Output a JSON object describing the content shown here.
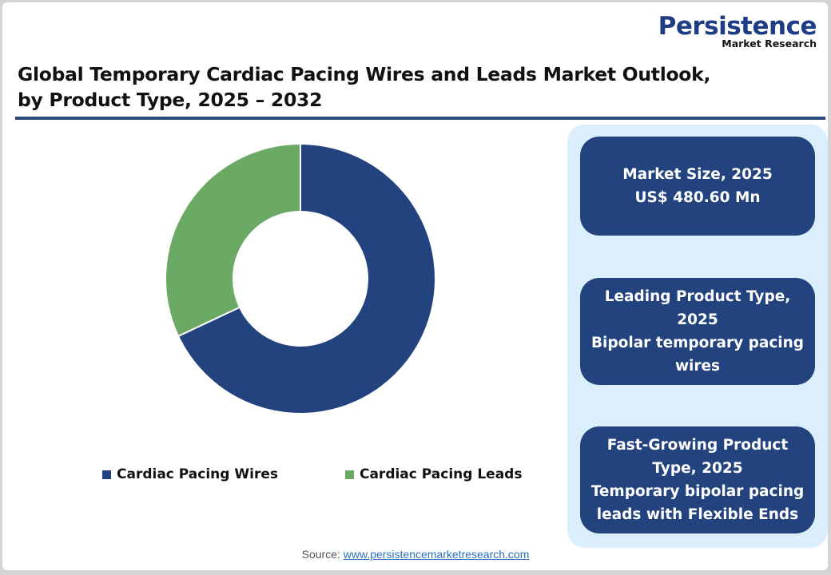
{
  "brand": {
    "name": "Persistence",
    "subtitle": "Market Research",
    "color": "#1f3d84"
  },
  "header": {
    "title_line1": "Global Temporary Cardiac Pacing Wires and Leads Market Outlook,",
    "title_line2": "by Product Type, 2025 – 2032"
  },
  "chart_data": {
    "type": "pie",
    "subtype": "donut",
    "title": "Global Temporary Cardiac Pacing Wires and Leads Market Outlook, by Product Type, 2025 – 2032",
    "categories": [
      "Cardiac Pacing Wires",
      "Cardiac Pacing Leads"
    ],
    "values": [
      68,
      32
    ],
    "unit": "%",
    "colors": [
      "#23437f",
      "#6aaa64"
    ],
    "legend_position": "bottom",
    "data_labels": false
  },
  "legend": {
    "items": [
      {
        "label": "Cardiac Pacing Wires",
        "color": "#23437f"
      },
      {
        "label": "Cardiac Pacing Leads",
        "color": "#6aaa64"
      }
    ]
  },
  "stats": [
    {
      "line1": "Market Size, 2025",
      "line2": "US$ 480.60 Mn"
    },
    {
      "line1": "Leading Product Type, 2025",
      "line2": "Bipolar temporary pacing wires"
    },
    {
      "line1": "Fast-Growing Product Type, 2025",
      "line2": "Temporary bipolar pacing leads with Flexible Ends"
    }
  ],
  "footer": {
    "source_label": "Source:",
    "source_link": "www.persistencemarketresearch.com"
  }
}
